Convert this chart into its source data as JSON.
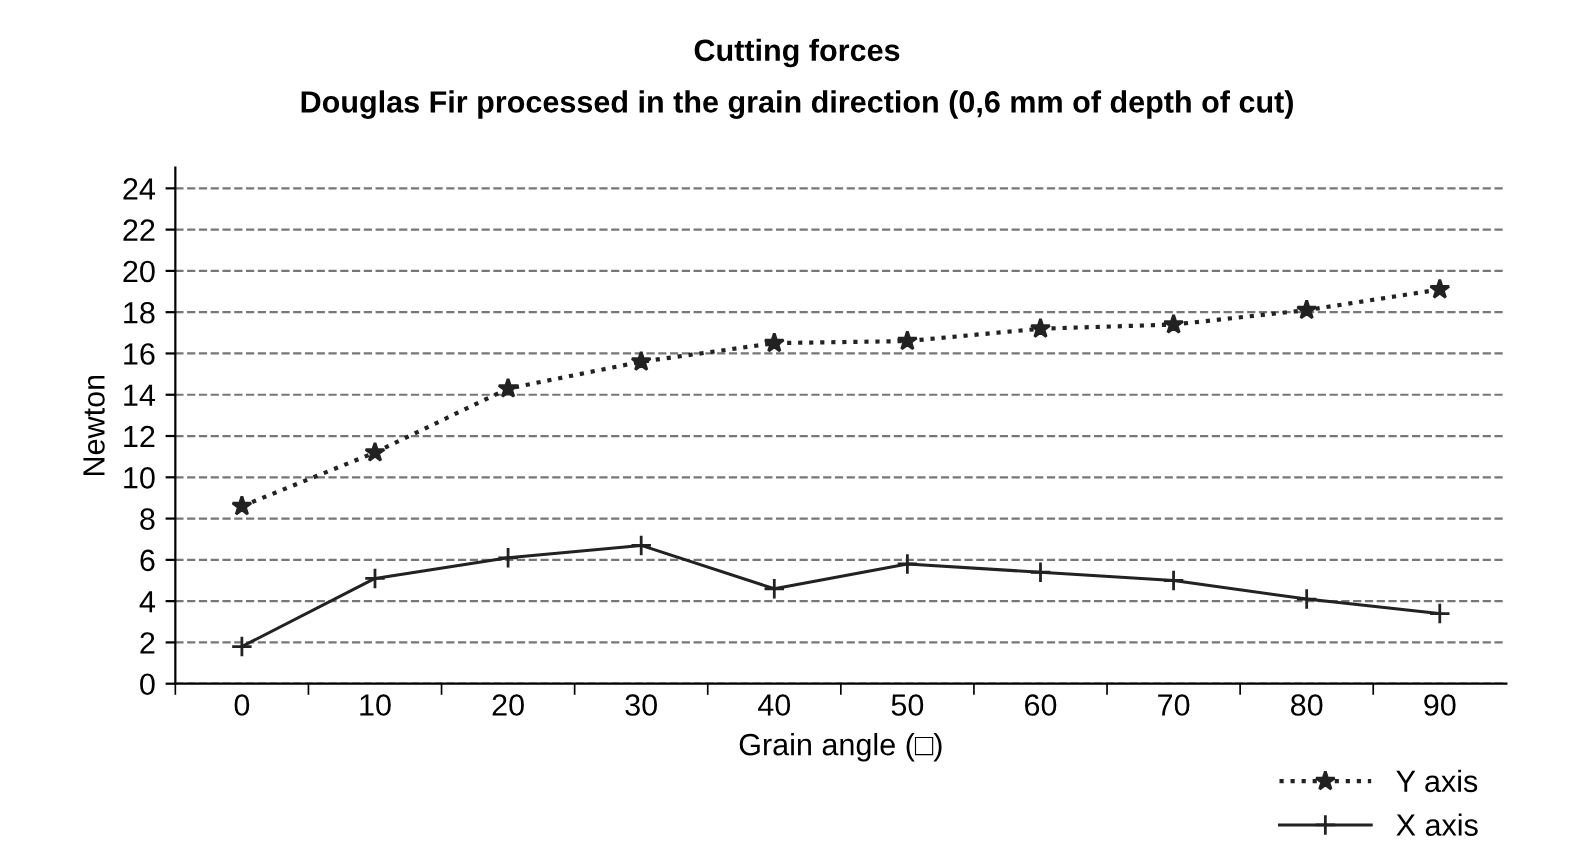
{
  "chart_data": {
    "type": "line",
    "title": "Cutting forces",
    "subtitle": "Douglas Fir processed in the grain direction (0,6 mm of depth of cut)",
    "xlabel": "Grain angle (□)",
    "ylabel": "Newton",
    "categories": [
      "0",
      "10",
      "20",
      "30",
      "40",
      "50",
      "60",
      "70",
      "80",
      "90"
    ],
    "series": [
      {
        "name": "Y axis",
        "color": "#222222",
        "line_style": "dotted",
        "marker": "star",
        "values": [
          8.6,
          11.2,
          14.3,
          15.6,
          16.5,
          16.6,
          17.2,
          17.4,
          18.1,
          19.1
        ]
      },
      {
        "name": "X axis",
        "color": "#222222",
        "line_style": "solid",
        "marker": "cross",
        "values": [
          1.8,
          5.1,
          6.1,
          6.7,
          4.6,
          5.8,
          5.4,
          5.0,
          4.1,
          3.4
        ]
      }
    ],
    "ylim": [
      0,
      25
    ],
    "yticks": [
      0,
      2,
      4,
      6,
      8,
      10,
      12,
      14,
      16,
      18,
      20,
      22,
      24
    ],
    "grid": "y",
    "legend": "bottom right"
  }
}
